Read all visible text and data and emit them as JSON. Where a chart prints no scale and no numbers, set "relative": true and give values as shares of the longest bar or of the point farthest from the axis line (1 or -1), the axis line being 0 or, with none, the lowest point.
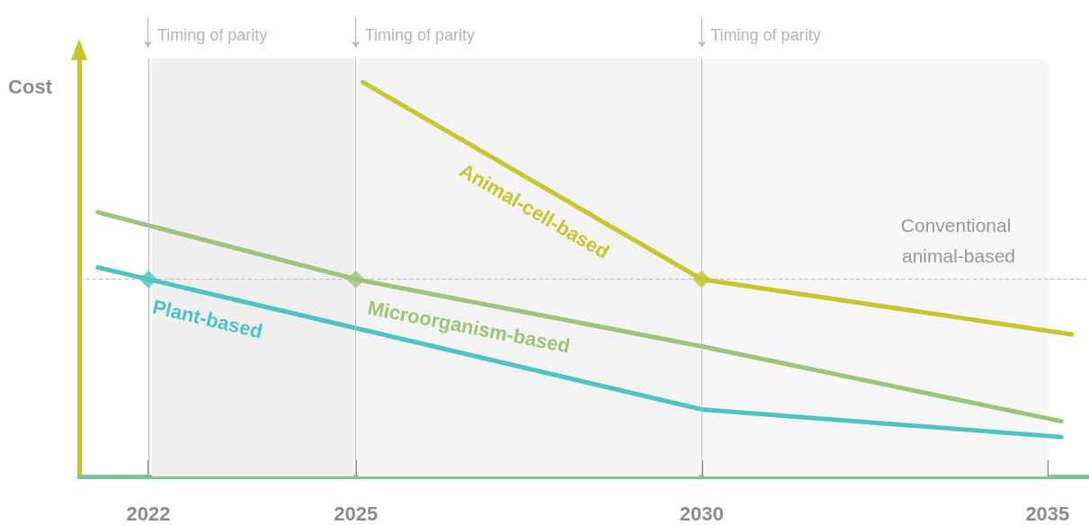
{
  "chart_data": {
    "type": "line",
    "ylabel": "Cost",
    "relative": true,
    "marker": "none",
    "xlim": [
      2021,
      2035.6
    ],
    "xticks": [
      2022,
      2025,
      2030,
      2035
    ],
    "series": [
      {
        "name": "Plant-based",
        "color": "#4fc3c3",
        "x": [
          2021.27,
          2022,
          2030,
          2035.2
        ],
        "values": [
          0.53,
          0.5,
          0.17,
          0.1
        ]
      },
      {
        "name": "Microorganism-based",
        "color": "#9cc47a",
        "x": [
          2021.27,
          2025,
          2030,
          2035.2
        ],
        "values": [
          0.67,
          0.5,
          0.33,
          0.14
        ]
      },
      {
        "name": "Animal-cell-based",
        "color": "#c5c630",
        "x": [
          2025.1,
          2030,
          2035.35
        ],
        "values": [
          1,
          0.5,
          0.36
        ]
      },
      {
        "type": "scatter",
        "marker": "diamond",
        "color": "#4fc3c3",
        "x": [
          2022
        ],
        "values": [
          0.5
        ]
      },
      {
        "type": "scatter",
        "marker": "diamond",
        "color": "#9cc47a",
        "x": [
          2025
        ],
        "values": [
          0.5
        ]
      },
      {
        "type": "scatter",
        "marker": "diamond",
        "color": "#c5c630",
        "x": [
          2030
        ],
        "values": [
          0.5
        ]
      }
    ],
    "ref_lines": [
      {
        "axis": "x",
        "value": 2022,
        "label": "Timing of parity",
        "color": "#bbbbbb"
      },
      {
        "axis": "x",
        "value": 2025,
        "label": "Timing of parity",
        "color": "#bbbbbb"
      },
      {
        "axis": "x",
        "value": 2030,
        "label": "Timing of parity",
        "color": "#bbbbbb"
      },
      {
        "axis": "y",
        "value": 0.5,
        "label": "Conventional animal-based",
        "color": "#bbbbbb",
        "line_style": "dashed"
      }
    ],
    "bands": [
      {
        "axis": "x",
        "from": 2022.05,
        "to": 2024.97,
        "color": "#efefef"
      },
      {
        "axis": "x",
        "from": 2025.03,
        "to": 2029.97,
        "color": "#f3f3f3"
      },
      {
        "axis": "x",
        "from": 2030.03,
        "to": 2035,
        "color": "#f7f7f7"
      }
    ]
  }
}
